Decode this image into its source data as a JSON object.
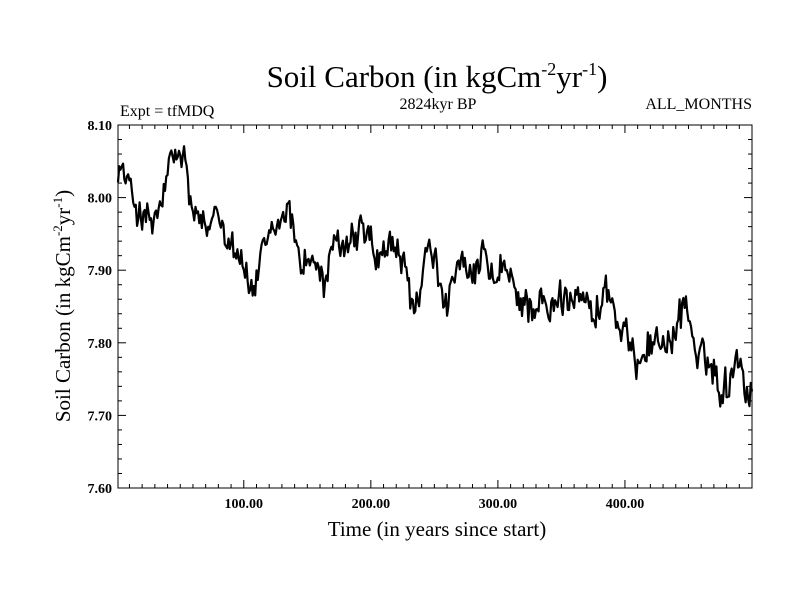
{
  "chart_data": {
    "type": "line",
    "title_main": "Soil Carbon (in kgCm",
    "title_exp1": "-2",
    "title_mid": "yr",
    "title_exp2": "-1",
    "title_end": ")",
    "subtitle_left": "Expt = tfMDQ",
    "subtitle_center": "2824kyr BP",
    "subtitle_right": "ALL_MONTHS",
    "xlabel": "Time (in years since start)",
    "ylabel_main": "Soil Carbon (in kgCm",
    "ylabel_exp1": "-2",
    "ylabel_mid": "yr",
    "ylabel_exp2": "-1",
    "ylabel_end": ")",
    "xlim": [
      1,
      500
    ],
    "ylim": [
      7.6,
      8.1
    ],
    "x_ticks": [
      100,
      200,
      300,
      400
    ],
    "x_tick_labels": [
      "100.00",
      "200.00",
      "300.00",
      "400.00"
    ],
    "y_ticks": [
      7.6,
      7.7,
      7.8,
      7.9,
      8.0,
      8.1
    ],
    "y_tick_labels": [
      "7.60",
      "7.70",
      "7.80",
      "7.90",
      "8.00",
      "8.10"
    ],
    "line_color": "#000000",
    "series": [
      {
        "name": "Soil Carbon",
        "trend": [
          [
            1,
            8.05
          ],
          [
            8,
            8.02
          ],
          [
            15,
            7.99
          ],
          [
            22,
            7.97
          ],
          [
            28,
            7.96
          ],
          [
            35,
            7.99
          ],
          [
            42,
            8.04
          ],
          [
            48,
            8.06
          ],
          [
            54,
            8.05
          ],
          [
            58,
            7.99
          ],
          [
            65,
            7.96
          ],
          [
            72,
            7.95
          ],
          [
            78,
            7.99
          ],
          [
            85,
            7.96
          ],
          [
            92,
            7.94
          ],
          [
            98,
            7.92
          ],
          [
            103,
            7.88
          ],
          [
            108,
            7.87
          ],
          [
            113,
            7.91
          ],
          [
            120,
            7.94
          ],
          [
            127,
            7.96
          ],
          [
            134,
            7.99
          ],
          [
            140,
            7.95
          ],
          [
            146,
            7.91
          ],
          [
            152,
            7.92
          ],
          [
            158,
            7.9
          ],
          [
            163,
            7.88
          ],
          [
            168,
            7.91
          ],
          [
            175,
            7.94
          ],
          [
            182,
            7.93
          ],
          [
            190,
            7.95
          ],
          [
            198,
            7.95
          ],
          [
            205,
            7.91
          ],
          [
            212,
            7.92
          ],
          [
            218,
            7.94
          ],
          [
            224,
            7.91
          ],
          [
            230,
            7.88
          ],
          [
            235,
            7.84
          ],
          [
            240,
            7.88
          ],
          [
            245,
            7.93
          ],
          [
            252,
            7.9
          ],
          [
            258,
            7.86
          ],
          [
            264,
            7.87
          ],
          [
            270,
            7.91
          ],
          [
            277,
            7.88
          ],
          [
            284,
            7.9
          ],
          [
            290,
            7.92
          ],
          [
            297,
            7.88
          ],
          [
            304,
            7.9
          ],
          [
            311,
            7.88
          ],
          [
            318,
            7.86
          ],
          [
            326,
            7.85
          ],
          [
            333,
            7.86
          ],
          [
            340,
            7.83
          ],
          [
            347,
            7.86
          ],
          [
            355,
            7.86
          ],
          [
            362,
            7.88
          ],
          [
            368,
            7.87
          ],
          [
            374,
            7.83
          ],
          [
            380,
            7.85
          ],
          [
            385,
            7.88
          ],
          [
            390,
            7.85
          ],
          [
            396,
            7.81
          ],
          [
            402,
            7.8
          ],
          [
            408,
            7.77
          ],
          [
            415,
            7.8
          ],
          [
            422,
            7.8
          ],
          [
            430,
            7.81
          ],
          [
            437,
            7.79
          ],
          [
            443,
            7.84
          ],
          [
            448,
            7.86
          ],
          [
            453,
            7.81
          ],
          [
            458,
            7.77
          ],
          [
            464,
            7.78
          ],
          [
            470,
            7.76
          ],
          [
            476,
            7.74
          ],
          [
            481,
            7.74
          ],
          [
            486,
            7.78
          ],
          [
            491,
            7.79
          ],
          [
            495,
            7.73
          ],
          [
            500,
            7.74
          ]
        ]
      }
    ]
  }
}
